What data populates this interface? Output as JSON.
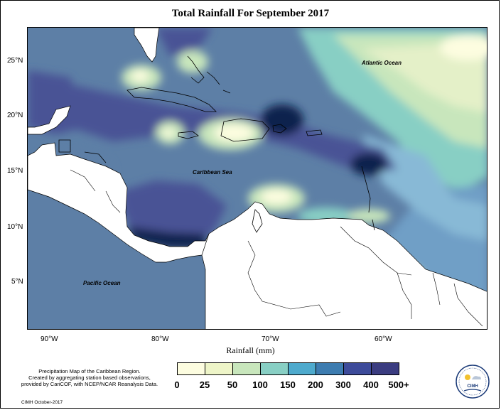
{
  "title": "Total Rainfall For September 2017",
  "colorbar_title": "Rainfall (mm)",
  "legend": {
    "levels": [
      "0",
      "25",
      "50",
      "100",
      "150",
      "200",
      "300",
      "400",
      "500+"
    ],
    "colors": [
      "#fdfde0",
      "#eef5c8",
      "#c8e6bc",
      "#88cfc4",
      "#4eaacd",
      "#3d7cb0",
      "#3d4b9a",
      "#3a3c80",
      "#0d1f4a"
    ]
  },
  "lat_labels": [
    "25°N",
    "20°N",
    "15°N",
    "10°N",
    "5°N"
  ],
  "lon_labels": [
    "90°W",
    "80°W",
    "70°W",
    "60°W"
  ],
  "labels": {
    "atlantic": "Atlantic Ocean",
    "caribbean": "Caribbean Sea",
    "pacific": "Pacific Ocean"
  },
  "note_lines": [
    "Precipitation Map of the Caribbean Region.",
    "Created by aggregating station based observations,",
    "provided by CariCOF, with NCEP/NCAR Reanalysis Data."
  ],
  "credit": "CIMH October-2017",
  "logo_text": "CIMH"
}
